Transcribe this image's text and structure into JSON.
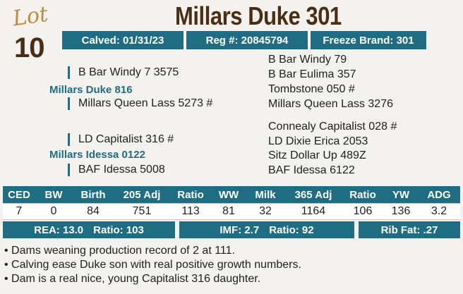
{
  "lot": {
    "word": "Lot",
    "number": "10"
  },
  "title": "Millars Duke 301",
  "info": {
    "calved": "Calved: 01/31/23",
    "reg": "Reg #: 20845794",
    "freeze_brand": "Freeze Brand: 301"
  },
  "pedigree": {
    "sire": "Millars Duke 816",
    "sire_sire": "B Bar Windy 7 3575",
    "sire_dam": "Millars Queen Lass 5273 #",
    "sss": "B Bar Windy 79",
    "ssd": "B Bar Eulima 357",
    "sds": "Tombstone 050 #",
    "sdd": "Millars Queen Lass 3276",
    "dam": "Millars Idessa 0122",
    "dam_sire": "LD Capitalist 316 #",
    "dam_dam": "BAF Idessa 5008",
    "dss": "Connealy Capitalist 028 #",
    "dsd": "LD Dixie Erica 2053",
    "dds": "Sitz Dollar Up 489Z",
    "ddd": "BAF Idessa 6122"
  },
  "stats": {
    "headers": [
      "CED",
      "BW",
      "Birth",
      "205 Adj",
      "Ratio",
      "WW",
      "Milk",
      "365 Adj",
      "Ratio",
      "YW",
      "ADG"
    ],
    "values": [
      "7",
      "0",
      "84",
      "751",
      "113",
      "81",
      "32",
      "1164",
      "106",
      "136",
      "3.2"
    ]
  },
  "epd": {
    "rea": "REA: 13.0",
    "rea_ratio": "Ratio: 103",
    "imf": "IMF: 2.7",
    "imf_ratio": "Ratio: 92",
    "rib_fat": "Rib Fat: .27"
  },
  "notes": [
    "Dams weaning production record of 2 at 111.",
    "Calving ease Duke son with real positive growth numbers.",
    "Dam is a real nice, young Capitalist 316 daughter."
  ],
  "colors": {
    "teal": "#1f6d82",
    "brown": "#4a2e14",
    "gold": "#c4893f"
  }
}
